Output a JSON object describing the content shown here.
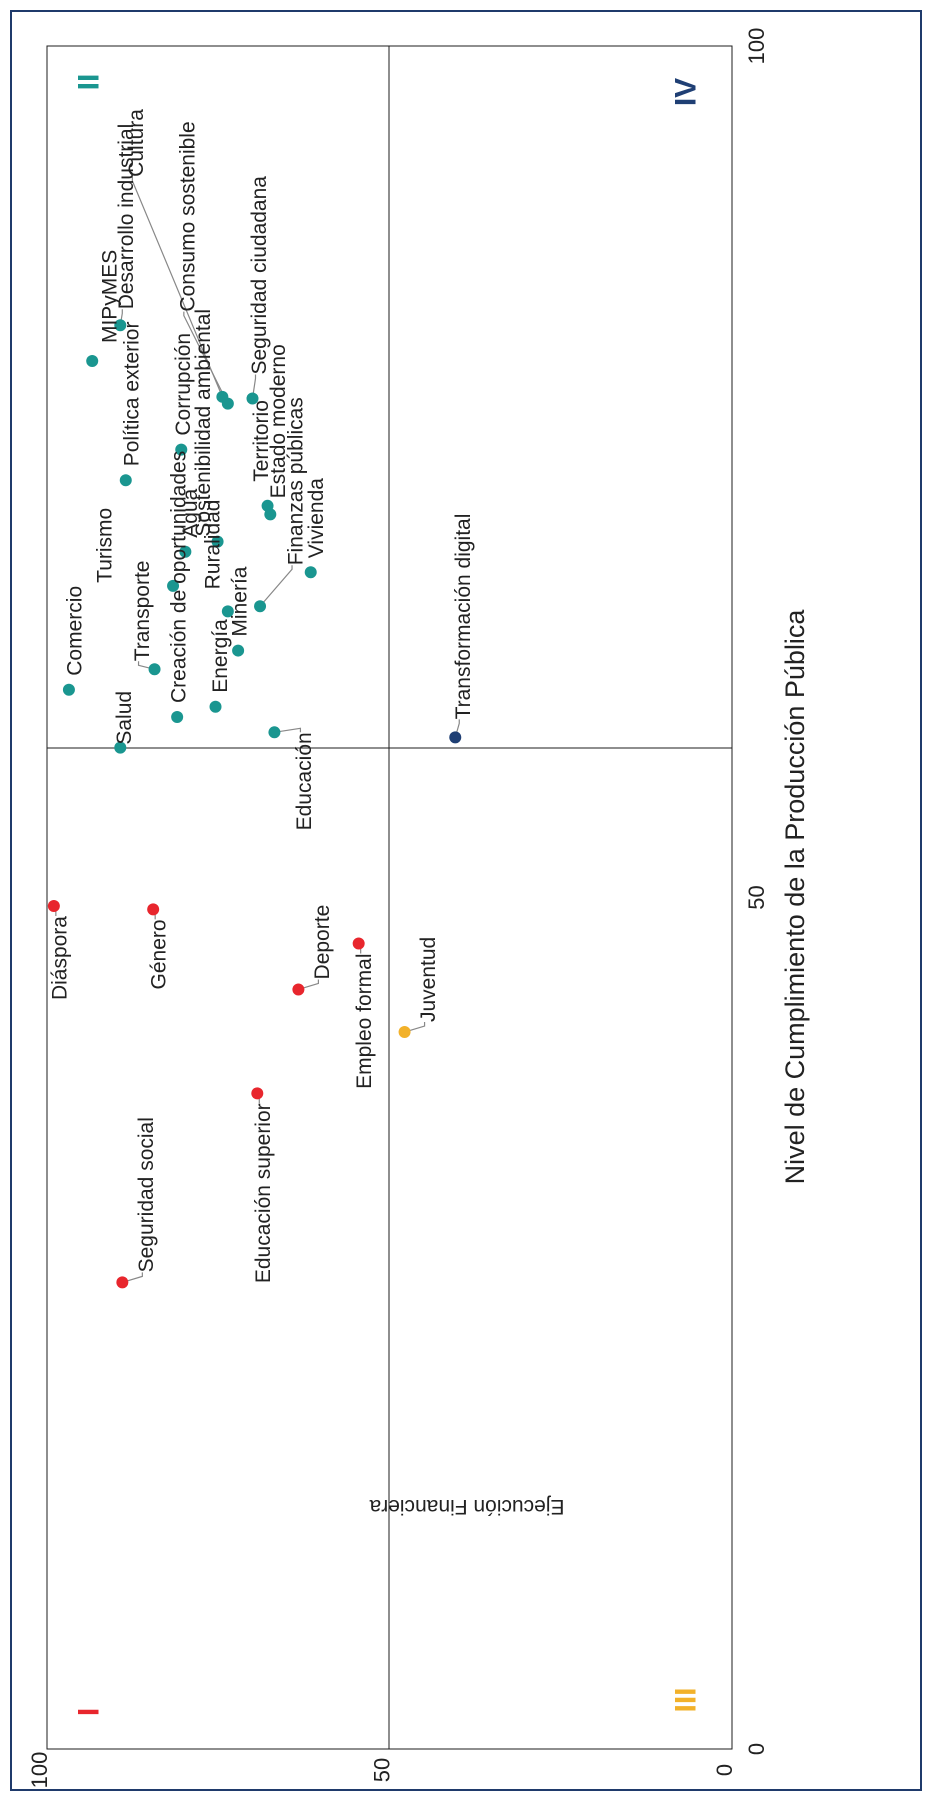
{
  "chart_data": {
    "type": "scatter",
    "title": "",
    "xlabel": "Nivel de Cumplimiento de la Producción Pública",
    "ylabel": "Ejecución Financiera",
    "xlim": [
      0,
      100
    ],
    "ylim": [
      0,
      100
    ],
    "x_ticks": [
      "0",
      "50",
      "100"
    ],
    "y_ticks": [
      "0",
      "50",
      "100"
    ],
    "quadrant_lines": {
      "x": 50,
      "y": 50
    },
    "grid": false,
    "quadrant_labels": [
      {
        "label": "I",
        "quadrant": "top-left",
        "color": "#e8262d"
      },
      {
        "label": "II",
        "quadrant": "top-right",
        "color": "#1a9690"
      },
      {
        "label": "III",
        "quadrant": "bottom-left",
        "color": "#f2b12a"
      },
      {
        "label": "IV",
        "quadrant": "bottom-right",
        "color": "#1f3f74"
      }
    ],
    "colors": {
      "I": "#e8262d",
      "II": "#1a9690",
      "III": "#f2b12a",
      "IV": "#1f3f74"
    },
    "points": [
      {
        "name": "Diáspora",
        "x": 49.5,
        "y": 99,
        "q": "I"
      },
      {
        "name": "Género",
        "x": 49.3,
        "y": 84.5,
        "q": "I"
      },
      {
        "name": "Deporte",
        "x": 44.6,
        "y": 63.3,
        "q": "I"
      },
      {
        "name": "Educación superior",
        "x": 38.5,
        "y": 69.3,
        "q": "I"
      },
      {
        "name": "Seguridad social",
        "x": 27.4,
        "y": 89,
        "q": "I"
      },
      {
        "name": "Empleo formal",
        "x": 47.3,
        "y": 54.5,
        "q": "I"
      },
      {
        "name": "Juventud",
        "x": 42.1,
        "y": 47.8,
        "q": "III"
      },
      {
        "name": "Comercio",
        "x": 62.2,
        "y": 96.8,
        "q": "II"
      },
      {
        "name": "MIPyMES",
        "x": 81.5,
        "y": 93.4,
        "q": "II"
      },
      {
        "name": "Desarrollo industrial",
        "x": 83.6,
        "y": 89.3,
        "q": "II"
      },
      {
        "name": "Política exterior",
        "x": 74.5,
        "y": 88.5,
        "q": "II"
      },
      {
        "name": "Corrupción",
        "x": 76.3,
        "y": 80.4,
        "q": "II"
      },
      {
        "name": "Cultura",
        "x": 79.4,
        "y": 74.4,
        "q": "II"
      },
      {
        "name": "Consumo sostenible",
        "x": 79.0,
        "y": 73.6,
        "q": "II"
      },
      {
        "name": "Seguridad ciudadana",
        "x": 79.3,
        "y": 70.0,
        "q": "II"
      },
      {
        "name": "Estado moderno",
        "x": 72.5,
        "y": 67.4,
        "q": "II"
      },
      {
        "name": "Territorio",
        "x": 73.0,
        "y": 67.8,
        "q": "II"
      },
      {
        "name": "Vivienda",
        "x": 69.1,
        "y": 61.5,
        "q": "II"
      },
      {
        "name": "Sostenibilidad ambiental",
        "x": 70.9,
        "y": 75.1,
        "q": "II"
      },
      {
        "name": "Agua",
        "x": 70.3,
        "y": 79.8,
        "q": "II"
      },
      {
        "name": "Turismo",
        "x": 68.3,
        "y": 81.6,
        "q": "II"
      },
      {
        "name": "Ruralidad",
        "x": 66.8,
        "y": 73.6,
        "q": "II"
      },
      {
        "name": "Finanzas públicas",
        "x": 67.1,
        "y": 68.9,
        "q": "II"
      },
      {
        "name": "Transporte",
        "x": 63.4,
        "y": 84.3,
        "q": "II"
      },
      {
        "name": "Minería",
        "x": 64.5,
        "y": 72.1,
        "q": "II"
      },
      {
        "name": "Salud",
        "x": 58.8,
        "y": 89.3,
        "q": "II"
      },
      {
        "name": "Creación de oportunidades",
        "x": 60.6,
        "y": 81.0,
        "q": "II"
      },
      {
        "name": "Energía",
        "x": 61.2,
        "y": 75.4,
        "q": "II"
      },
      {
        "name": "Educación",
        "x": 59.7,
        "y": 66.8,
        "q": "II"
      },
      {
        "name": "Transformación digital",
        "x": 59.4,
        "y": 40.4,
        "q": "IV"
      }
    ]
  }
}
